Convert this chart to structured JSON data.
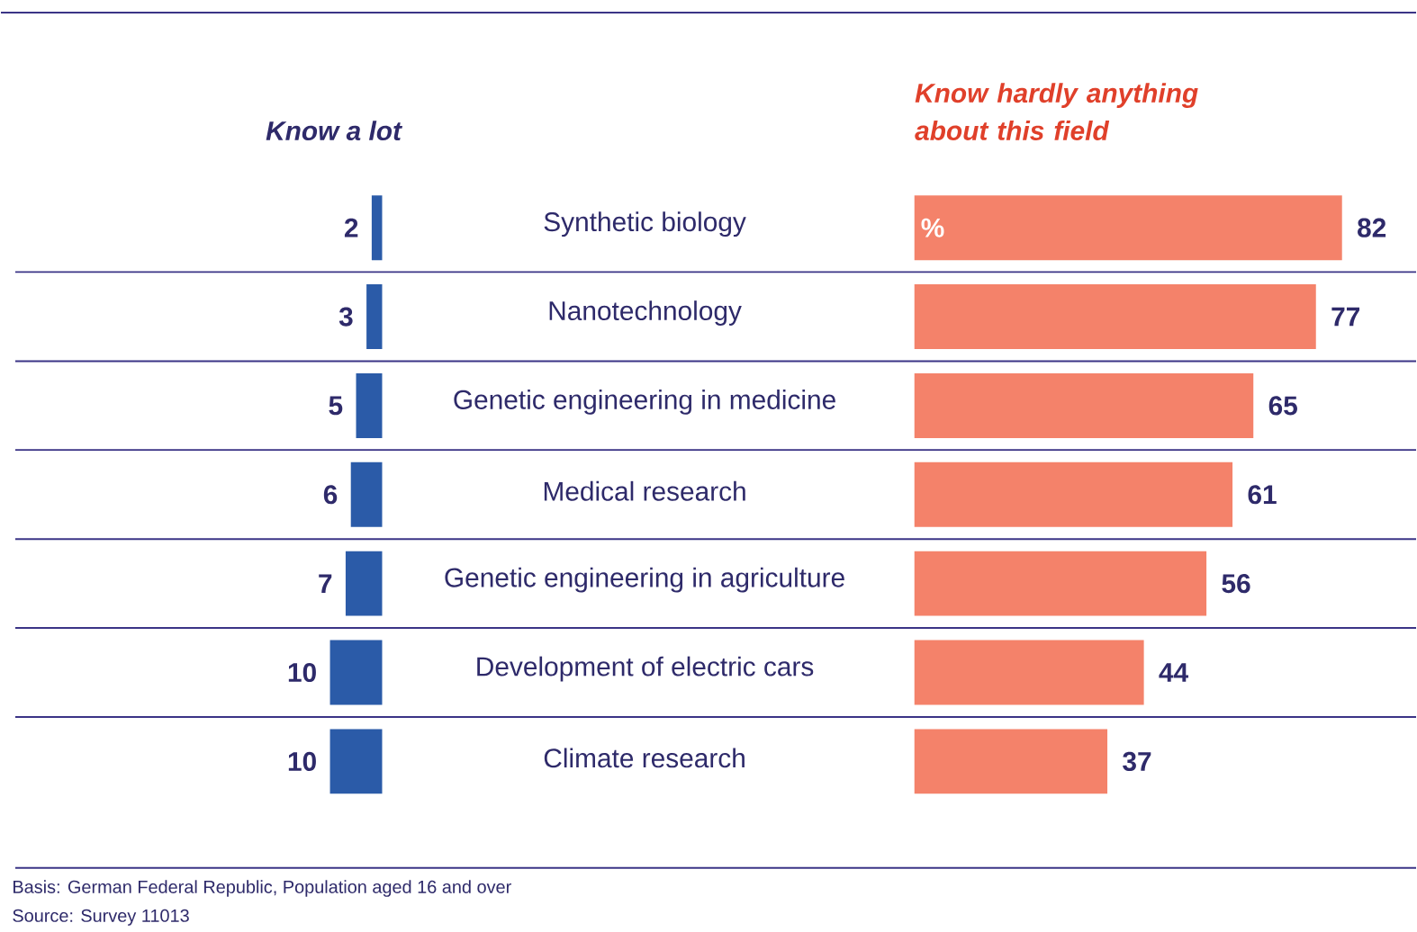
{
  "chart_data": [
    {
      "type": "bar",
      "orientation": "horizontal",
      "categories": [
        "Synthetic biology",
        "Nanotechnology",
        "Genetic engineering in medicine",
        "Medical research",
        "Genetic engineering in agriculture",
        "Development of electric cars",
        "Climate research"
      ],
      "series": [
        {
          "name": "Know a lot",
          "color": "#2b5ba8",
          "values": [
            2,
            3,
            5,
            6,
            7,
            10,
            10
          ]
        }
      ],
      "data_labels": true,
      "tick_labels": "y"
    },
    {
      "type": "bar",
      "orientation": "horizontal",
      "categories": [
        null,
        null,
        null,
        null,
        null,
        null,
        null
      ],
      "series": [
        {
          "name": "Know hardly anything about this field",
          "color": "#f4826a",
          "values": [
            82,
            77,
            65,
            61,
            56,
            44,
            37
          ]
        }
      ],
      "data_labels": true,
      "tick_labels": false,
      "annotations": [
        "%",
        "Basis: German Federal Republic, Population aged 16 and over",
        "Source: Survey 11013"
      ]
    }
  ]
}
